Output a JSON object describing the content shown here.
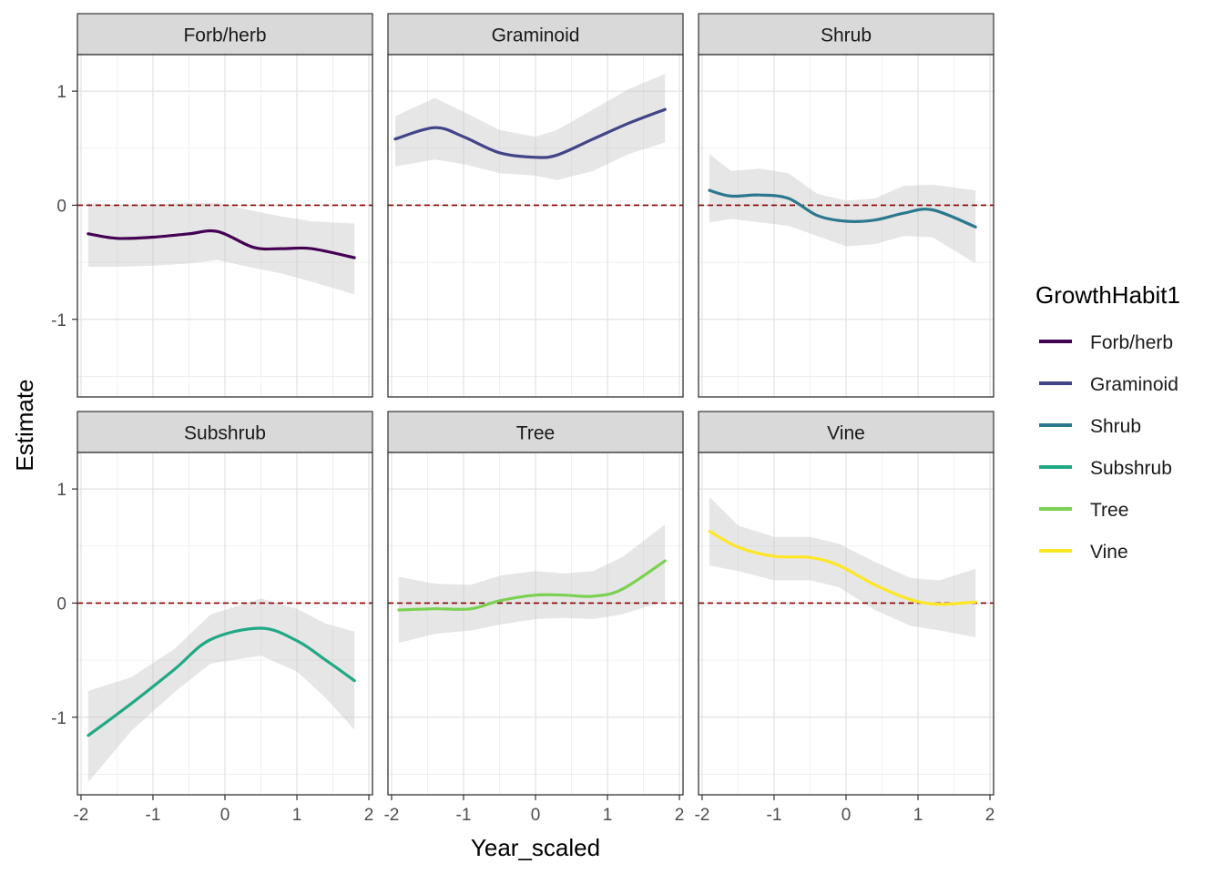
{
  "chart_data": {
    "type": "line",
    "xlabel": "Year_scaled",
    "ylabel": "Estimate",
    "xlim": [
      -2.05,
      2.05
    ],
    "ylim": [
      -1.68,
      1.32
    ],
    "x_ticks": [
      -2,
      -1,
      0,
      1,
      2
    ],
    "y_ticks": [
      -1,
      0,
      1
    ],
    "reference_line_y": 0,
    "legend": {
      "title": "GrowthHabit1",
      "placement": "right"
    },
    "series": [
      {
        "name": "Forb/herb",
        "color": "#440154",
        "x": [
          -1.9,
          -1.5,
          -1.0,
          -0.5,
          -0.1,
          0.4,
          0.8,
          1.2,
          1.8
        ],
        "y": [
          -0.25,
          -0.29,
          -0.28,
          -0.25,
          -0.23,
          -0.37,
          -0.38,
          -0.38,
          -0.46
        ],
        "upper": [
          0.02,
          0.0,
          0.01,
          0.02,
          0.02,
          -0.05,
          -0.1,
          -0.14,
          -0.16
        ],
        "lower": [
          -0.54,
          -0.54,
          -0.53,
          -0.51,
          -0.48,
          -0.55,
          -0.6,
          -0.67,
          -0.78
        ]
      },
      {
        "name": "Graminoid",
        "color": "#414487",
        "x": [
          -1.95,
          -1.4,
          -1.0,
          -0.5,
          0.0,
          0.3,
          0.8,
          1.3,
          1.8
        ],
        "y": [
          0.58,
          0.68,
          0.6,
          0.46,
          0.42,
          0.44,
          0.58,
          0.72,
          0.84
        ],
        "upper": [
          0.78,
          0.94,
          0.82,
          0.66,
          0.6,
          0.66,
          0.84,
          1.02,
          1.15
        ],
        "lower": [
          0.34,
          0.4,
          0.36,
          0.28,
          0.26,
          0.22,
          0.3,
          0.45,
          0.55
        ]
      },
      {
        "name": "Shrub",
        "color": "#2A788E",
        "x": [
          -1.9,
          -1.6,
          -1.2,
          -0.8,
          -0.4,
          0.0,
          0.4,
          0.8,
          1.2,
          1.8
        ],
        "y": [
          0.13,
          0.08,
          0.09,
          0.06,
          -0.09,
          -0.14,
          -0.13,
          -0.07,
          -0.04,
          -0.19
        ],
        "upper": [
          0.45,
          0.3,
          0.32,
          0.28,
          0.1,
          0.04,
          0.06,
          0.17,
          0.18,
          0.13
        ],
        "lower": [
          -0.15,
          -0.12,
          -0.15,
          -0.18,
          -0.27,
          -0.36,
          -0.34,
          -0.27,
          -0.28,
          -0.51
        ]
      },
      {
        "name": "Subshrub",
        "color": "#22A884",
        "x": [
          -1.9,
          -1.3,
          -0.7,
          -0.2,
          0.5,
          1.0,
          1.4,
          1.8
        ],
        "y": [
          -1.16,
          -0.88,
          -0.58,
          -0.32,
          -0.22,
          -0.33,
          -0.5,
          -0.68
        ],
        "upper": [
          -0.77,
          -0.65,
          -0.4,
          -0.1,
          0.04,
          -0.05,
          -0.18,
          -0.25
        ],
        "lower": [
          -1.57,
          -1.12,
          -0.78,
          -0.53,
          -0.46,
          -0.6,
          -0.83,
          -1.11
        ]
      },
      {
        "name": "Tree",
        "color": "#7AD151",
        "x": [
          -1.9,
          -1.4,
          -0.9,
          -0.5,
          0.0,
          0.4,
          0.8,
          1.2,
          1.8
        ],
        "y": [
          -0.06,
          -0.05,
          -0.05,
          0.02,
          0.07,
          0.07,
          0.06,
          0.12,
          0.37
        ],
        "upper": [
          0.23,
          0.17,
          0.16,
          0.24,
          0.28,
          0.26,
          0.28,
          0.4,
          0.69
        ],
        "lower": [
          -0.35,
          -0.27,
          -0.24,
          -0.19,
          -0.14,
          -0.13,
          -0.14,
          -0.1,
          0.02
        ]
      },
      {
        "name": "Vine",
        "color": "#FDE725",
        "x": [
          -1.9,
          -1.5,
          -1.0,
          -0.5,
          -0.1,
          0.4,
          0.9,
          1.3,
          1.8
        ],
        "y": [
          0.63,
          0.49,
          0.41,
          0.4,
          0.33,
          0.16,
          0.03,
          -0.01,
          0.01
        ],
        "upper": [
          0.93,
          0.68,
          0.58,
          0.58,
          0.52,
          0.36,
          0.22,
          0.2,
          0.3
        ],
        "lower": [
          0.33,
          0.28,
          0.2,
          0.2,
          0.14,
          -0.06,
          -0.2,
          -0.24,
          -0.3
        ]
      }
    ],
    "panels": [
      "Forb/herb",
      "Graminoid",
      "Shrub",
      "Subshrub",
      "Tree",
      "Vine"
    ]
  }
}
